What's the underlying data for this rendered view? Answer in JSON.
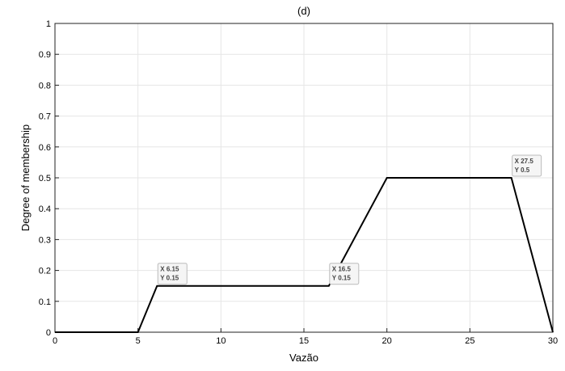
{
  "chart_data": {
    "type": "line",
    "title": "(d)",
    "xlabel": "Vazão",
    "ylabel": "Degree of membership",
    "xlim": [
      0,
      30
    ],
    "ylim": [
      0,
      1
    ],
    "grid": true,
    "xticks": [
      0,
      5,
      10,
      15,
      20,
      25,
      30
    ],
    "yticks": [
      0,
      0.1,
      0.2,
      0.3,
      0.4,
      0.5,
      0.6,
      0.7,
      0.8,
      0.9,
      1
    ],
    "series": [
      {
        "x": [
          0,
          5,
          6.15,
          16.5,
          20,
          27.5,
          30
        ],
        "y": [
          0,
          0,
          0.15,
          0.15,
          0.5,
          0.5,
          0
        ],
        "color": "#000000"
      }
    ],
    "datatips": [
      {
        "x": 6.15,
        "y": 0.15,
        "label_x": "X 6.15",
        "label_y": "Y 0.15"
      },
      {
        "x": 16.5,
        "y": 0.15,
        "label_x": "X 16.5",
        "label_y": "Y 0.15"
      },
      {
        "x": 27.5,
        "y": 0.5,
        "label_x": "X 27.5",
        "label_y": "Y 0.5"
      }
    ]
  }
}
